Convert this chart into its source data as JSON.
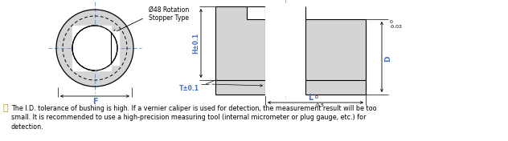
{
  "bg_color": "#ffffff",
  "line_color": "#000000",
  "blue_color": "#4472c4",
  "gray_fill": "#d4d4d4",
  "center_line_color": "#6688cc",
  "note_symbol_color": "#b8960a",
  "annotation_label": "Ø48 Rotation\nStopper Type",
  "dim_H": "H±0.1",
  "dim_T": "T±0.1",
  "dim_F": "F",
  "note_text": "The I.D. tolerance of bushing is high. If a vernier caliper is used for detection, the measurement result will be too\nsmall. It is recommended to use a high-precision measuring tool (internal micrometer or plug gauge, etc.) for\ndetection.",
  "figure_width": 6.32,
  "figure_height": 1.76,
  "dpi": 100
}
